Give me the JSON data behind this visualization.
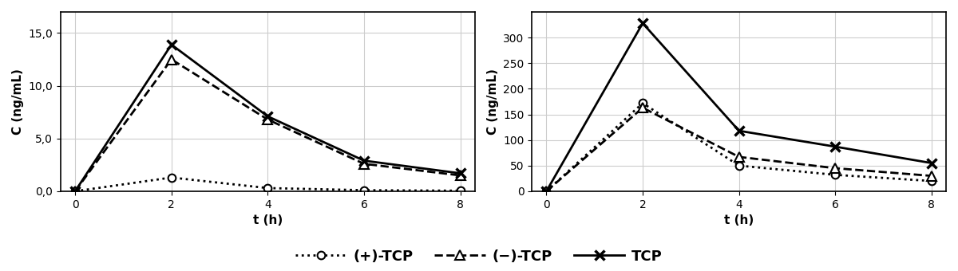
{
  "t": [
    0,
    2,
    4,
    6,
    8
  ],
  "left_plus_tcp": [
    0,
    1.3,
    0.3,
    0.1,
    0.05
  ],
  "left_minus_tcp": [
    0,
    12.5,
    6.8,
    2.6,
    1.5
  ],
  "left_tcp": [
    0,
    13.9,
    7.1,
    2.9,
    1.7
  ],
  "right_plus_tcp": [
    0,
    172,
    50,
    32,
    20
  ],
  "right_minus_tcp": [
    0,
    163,
    67,
    45,
    30
  ],
  "right_tcp": [
    0,
    328,
    118,
    87,
    55
  ],
  "left_ylim": [
    0,
    17
  ],
  "left_yticks": [
    0.0,
    5.0,
    10.0,
    15.0
  ],
  "right_ylim": [
    0,
    350
  ],
  "right_yticks": [
    0,
    50,
    100,
    150,
    200,
    250,
    300
  ],
  "xlabel": "t (h)",
  "ylabel": "C (ng/mL)",
  "legend_plus": "(+)-TCP",
  "legend_minus": "(−)-TCP",
  "legend_tcp": "TCP",
  "bg_color": "#ffffff",
  "line_color": "#000000"
}
